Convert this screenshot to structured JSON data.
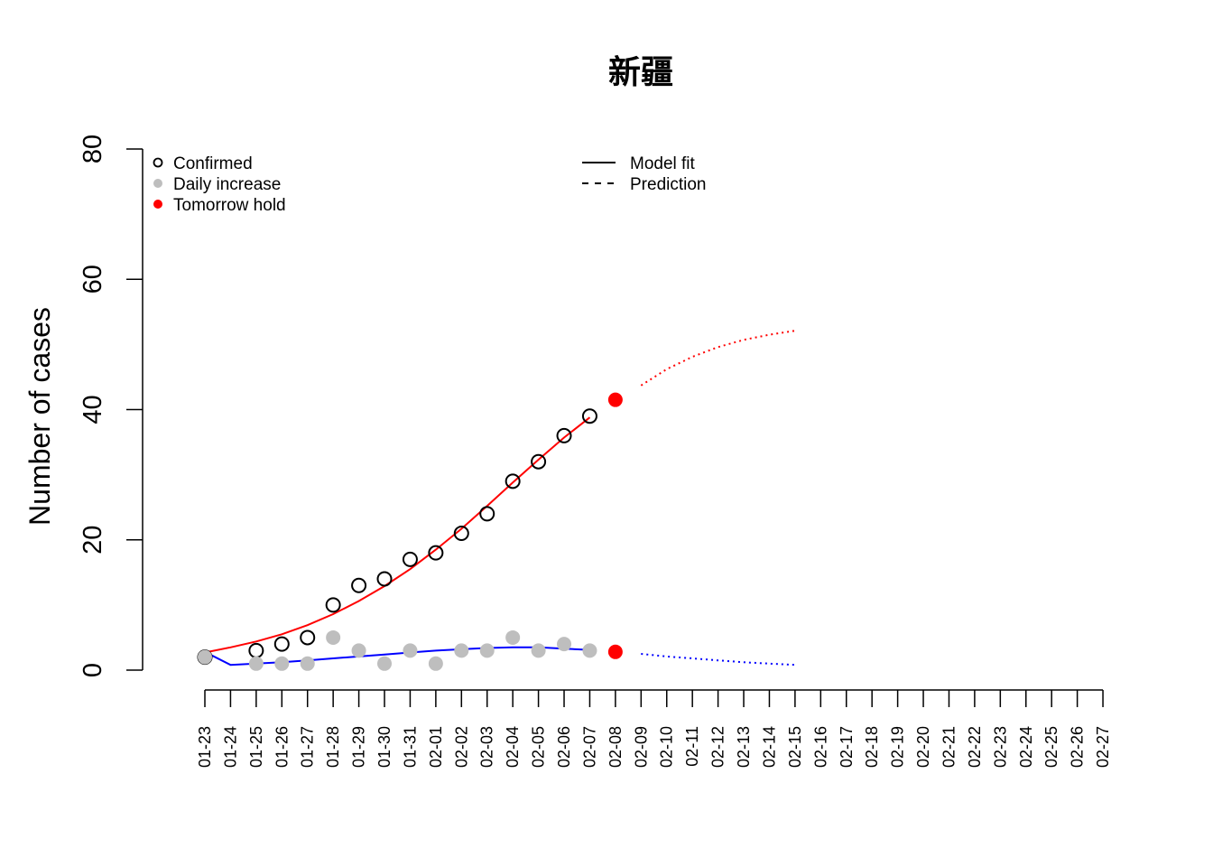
{
  "chart_data": {
    "type": "line",
    "title": "新疆",
    "xlabel": "",
    "ylabel": "Number of cases",
    "ylim": [
      0,
      80
    ],
    "yticks": [
      0,
      20,
      40,
      60,
      80
    ],
    "categories": [
      "01-23",
      "01-24",
      "01-25",
      "01-26",
      "01-27",
      "01-28",
      "01-29",
      "01-30",
      "01-31",
      "02-01",
      "02-02",
      "02-03",
      "02-04",
      "02-05",
      "02-06",
      "02-07",
      "02-08",
      "02-09",
      "02-10",
      "02-11",
      "02-12",
      "02-13",
      "02-14",
      "02-15",
      "02-16",
      "02-17",
      "02-18",
      "02-19",
      "02-20",
      "02-21",
      "02-22",
      "02-23",
      "02-24",
      "02-25",
      "02-26",
      "02-27"
    ],
    "legend": {
      "left": [
        {
          "label": "Confirmed",
          "marker": "open-circle",
          "color": "#000000"
        },
        {
          "label": "Daily increase",
          "marker": "filled-circle",
          "color": "#bebebe"
        },
        {
          "label": "Tomorrow hold",
          "marker": "filled-circle",
          "color": "#ff0000"
        }
      ],
      "right": [
        {
          "label": "Model fit",
          "line": "solid",
          "color": "#000000"
        },
        {
          "label": "Prediction",
          "line": "dashed",
          "color": "#000000"
        }
      ],
      "placement": "top"
    },
    "series": [
      {
        "name": "Confirmed",
        "kind": "points-open",
        "color": "#000000",
        "points": [
          [
            0,
            2
          ],
          [
            2,
            3
          ],
          [
            3,
            4
          ],
          [
            4,
            5
          ],
          [
            5,
            10
          ],
          [
            6,
            13
          ],
          [
            7,
            14
          ],
          [
            8,
            17
          ],
          [
            9,
            18
          ],
          [
            10,
            21
          ],
          [
            11,
            24
          ],
          [
            12,
            29
          ],
          [
            13,
            32
          ],
          [
            14,
            36
          ],
          [
            15,
            39
          ]
        ]
      },
      {
        "name": "Daily increase",
        "kind": "points-filled",
        "color": "#bebebe",
        "points": [
          [
            0,
            2
          ],
          [
            2,
            1
          ],
          [
            3,
            1
          ],
          [
            4,
            1
          ],
          [
            5,
            5
          ],
          [
            6,
            3
          ],
          [
            7,
            1
          ],
          [
            8,
            3
          ],
          [
            9,
            1
          ],
          [
            10,
            3
          ],
          [
            11,
            3
          ],
          [
            12,
            5
          ],
          [
            13,
            3
          ],
          [
            14,
            4
          ],
          [
            15,
            3
          ]
        ]
      },
      {
        "name": "Tomorrow hold",
        "kind": "points-filled",
        "color": "#ff0000",
        "points": [
          [
            16,
            41.5
          ],
          [
            16,
            2.8
          ]
        ]
      },
      {
        "name": "Model fit",
        "kind": "line-solid",
        "color": "#ff0000",
        "points": [
          [
            0,
            2.7
          ],
          [
            1,
            3.5
          ],
          [
            2,
            4.4
          ],
          [
            3,
            5.5
          ],
          [
            4,
            6.9
          ],
          [
            5,
            8.6
          ],
          [
            6,
            10.6
          ],
          [
            7,
            12.9
          ],
          [
            8,
            15.5
          ],
          [
            9,
            18.5
          ],
          [
            10,
            21.7
          ],
          [
            11,
            25.2
          ],
          [
            12,
            28.8
          ],
          [
            13,
            32.3
          ],
          [
            14,
            35.7
          ],
          [
            15,
            38.8
          ]
        ]
      },
      {
        "name": "Prediction",
        "kind": "line-dotted",
        "color": "#ff0000",
        "points": [
          [
            17,
            43.7
          ],
          [
            18,
            46.2
          ],
          [
            19,
            48.1
          ],
          [
            20,
            49.6
          ],
          [
            21,
            50.7
          ],
          [
            22,
            51.5
          ],
          [
            23,
            52.1
          ]
        ]
      },
      {
        "name": "Model fit",
        "kind": "line-solid",
        "color": "#0000ff",
        "points": [
          [
            0,
            2.8
          ],
          [
            1,
            0.8
          ],
          [
            2,
            1.0
          ],
          [
            3,
            1.2
          ],
          [
            4,
            1.5
          ],
          [
            5,
            1.8
          ],
          [
            6,
            2.1
          ],
          [
            7,
            2.4
          ],
          [
            8,
            2.7
          ],
          [
            9,
            3.0
          ],
          [
            10,
            3.2
          ],
          [
            11,
            3.4
          ],
          [
            12,
            3.5
          ],
          [
            13,
            3.5
          ],
          [
            14,
            3.3
          ],
          [
            15,
            3.1
          ]
        ]
      },
      {
        "name": "Prediction",
        "kind": "line-dotted",
        "color": "#0000ff",
        "points": [
          [
            17,
            2.5
          ],
          [
            18,
            2.1
          ],
          [
            19,
            1.8
          ],
          [
            20,
            1.5
          ],
          [
            21,
            1.2
          ],
          [
            22,
            1.0
          ],
          [
            23,
            0.8
          ]
        ]
      }
    ]
  }
}
